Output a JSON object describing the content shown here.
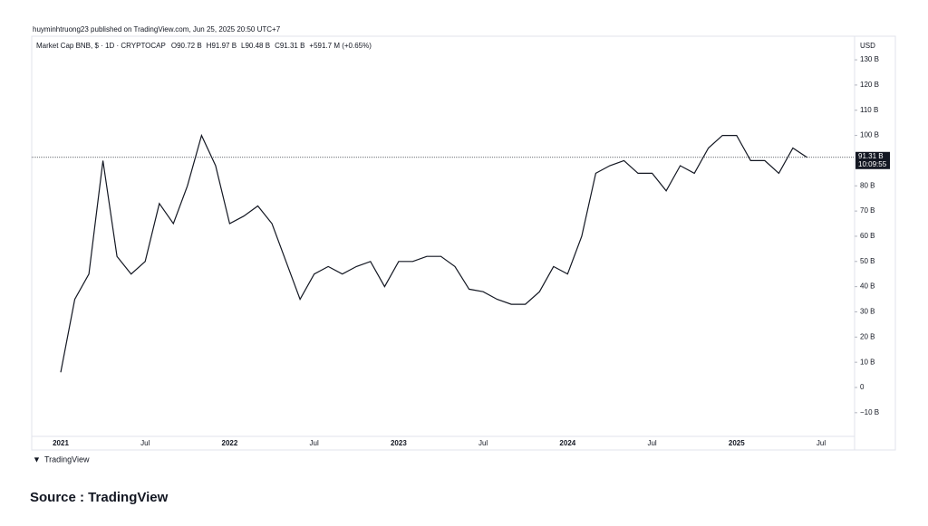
{
  "header": {
    "publisher": "huyminhtruong23 published on TradingView.com, Jun 25, 2025 20:50 UTC+7",
    "brand": "TradingView",
    "source": "Source : TradingView"
  },
  "chart_data": {
    "type": "line",
    "title": "Market Cap BNB, $ · 1D · CRYPTOCAP",
    "ohlc_legend": [
      "O90.72 B",
      "H91.97 B",
      "L90.48 B",
      "C91.31 B",
      "+591.7 M (+0.65%)"
    ],
    "y_axis_label": "USD",
    "categories": [
      "2021",
      null,
      null,
      null,
      null,
      null,
      "Jul",
      null,
      null,
      null,
      null,
      null,
      "2022",
      null,
      null,
      null,
      null,
      null,
      "Jul",
      null,
      null,
      null,
      null,
      null,
      "2023",
      null,
      null,
      null,
      null,
      null,
      "Jul",
      null,
      null,
      null,
      null,
      null,
      "2024",
      null,
      null,
      null,
      null,
      null,
      "Jul",
      null,
      null,
      null,
      null,
      null,
      "2025",
      null,
      null,
      null,
      null,
      null,
      "Jul"
    ],
    "values": [
      6,
      35,
      45,
      90,
      52,
      45,
      50,
      73,
      65,
      80,
      100,
      88,
      65,
      68,
      72,
      65,
      50,
      35,
      45,
      48,
      45,
      48,
      50,
      40,
      50,
      50,
      52,
      52,
      48,
      39,
      38,
      35,
      33,
      33,
      38,
      48,
      45,
      60,
      85,
      88,
      90,
      85,
      85,
      78,
      88,
      85,
      95,
      100,
      100,
      90,
      90,
      85,
      95,
      91.31,
      null
    ],
    "color": "#131722",
    "last_value": {
      "value": 91.31,
      "label": "91.31 B"
    },
    "countdown": "10:09:55",
    "ylim": [
      -19.4,
      132.9
    ],
    "yticks": [
      {
        "value": 130,
        "label": "130 B"
      },
      {
        "value": 120,
        "label": "120 B"
      },
      {
        "value": 110,
        "label": "110 B"
      },
      {
        "value": 100,
        "label": "100 B"
      },
      {
        "value": 80,
        "label": "80 B"
      },
      {
        "value": 70,
        "label": "70 B"
      },
      {
        "value": 60,
        "label": "60 B"
      },
      {
        "value": 50,
        "label": "50 B"
      },
      {
        "value": 40,
        "label": "40 B"
      },
      {
        "value": 30,
        "label": "30 B"
      },
      {
        "value": 20,
        "label": "20 B"
      },
      {
        "value": 10,
        "label": "10 B"
      },
      0,
      {
        "value": -10,
        "label": "−10 B"
      }
    ],
    "grid": false
  }
}
